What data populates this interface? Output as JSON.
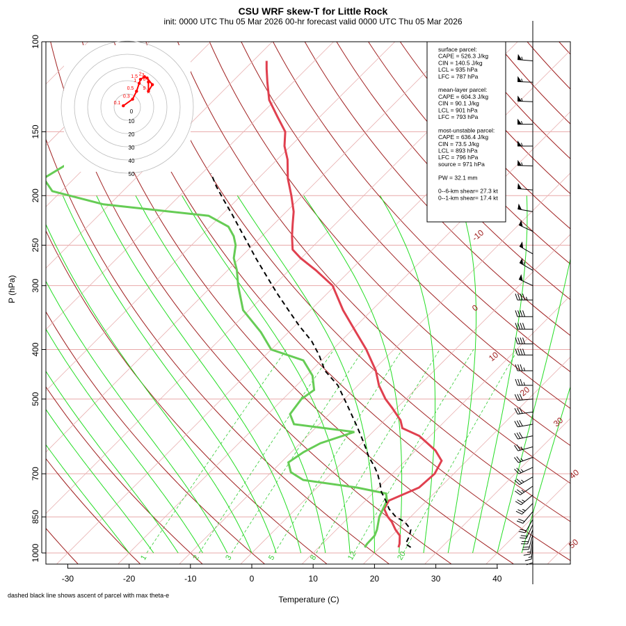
{
  "header": {
    "title": "CSU WRF skew-T for Little Rock",
    "subtitle": "init: 0000 UTC Thu 05 Mar 2026     00-hr forecast valid 0000 UTC Thu 05 Mar 2026"
  },
  "footnote": "dashed black line shows ascent of parcel with max theta-e",
  "chart_data": {
    "type": "line",
    "title": "CSU WRF skew-T for Little Rock",
    "xlabel": "Temperature (C)",
    "ylabel": "P (hPa)",
    "x_ticks": [
      "-30",
      "-20",
      "-10",
      "0",
      "10",
      "20",
      "30",
      "40"
    ],
    "y_ticks": [
      "100",
      "150",
      "200",
      "250",
      "300",
      "400",
      "500",
      "700",
      "850",
      "1000"
    ],
    "xlim": [
      -33,
      50
    ],
    "ylim": [
      1000,
      100
    ],
    "isotherm_labels": [
      "-10",
      "0",
      "10",
      "20",
      "30",
      "40",
      "50"
    ],
    "mixing_ratio_labels": [
      "1",
      "2",
      "3",
      "5",
      "8",
      "12",
      "20"
    ],
    "series": [
      {
        "name": "temperature",
        "color": "#e0404f",
        "points": [
          [
            23.0,
            975
          ],
          [
            22.6,
            960
          ],
          [
            21.3,
            925
          ],
          [
            19.6,
            900
          ],
          [
            17.8,
            870
          ],
          [
            16.3,
            850
          ],
          [
            14.4,
            820
          ],
          [
            13.8,
            790
          ],
          [
            16.6,
            745
          ],
          [
            16.9,
            700
          ],
          [
            15.9,
            660
          ],
          [
            13.2,
            630
          ],
          [
            8.2,
            590
          ],
          [
            4.2,
            570
          ],
          [
            2.6,
            550
          ],
          [
            -0.8,
            520
          ],
          [
            -3.3,
            500
          ],
          [
            -6.6,
            470
          ],
          [
            -9.5,
            440
          ],
          [
            -14.5,
            400
          ],
          [
            -19.0,
            370
          ],
          [
            -24.7,
            335
          ],
          [
            -30.4,
            300
          ],
          [
            -35.6,
            280
          ],
          [
            -40.1,
            265
          ],
          [
            -42.8,
            255
          ],
          [
            -45.1,
            240
          ],
          [
            -47.0,
            227
          ],
          [
            -48.8,
            215
          ],
          [
            -51.8,
            200
          ],
          [
            -55.2,
            185
          ],
          [
            -58.3,
            170
          ],
          [
            -61.0,
            160
          ],
          [
            -63.2,
            150
          ],
          [
            -67.0,
            140
          ],
          [
            -71.0,
            130
          ],
          [
            -74.2,
            120
          ],
          [
            -76.5,
            113
          ],
          [
            -77.8,
            109
          ]
        ]
      },
      {
        "name": "dewpoint",
        "color": "#66cc55",
        "points": [
          [
            17.5,
            975
          ],
          [
            17.3,
            960
          ],
          [
            17.2,
            925
          ],
          [
            16.6,
            900
          ],
          [
            15.6,
            870
          ],
          [
            14.9,
            850
          ],
          [
            14.2,
            820
          ],
          [
            13.5,
            790
          ],
          [
            12.2,
            765
          ],
          [
            6.5,
            745
          ],
          [
            -3.5,
            720
          ],
          [
            -6.8,
            695
          ],
          [
            -8.8,
            665
          ],
          [
            -8.0,
            635
          ],
          [
            -6.7,
            610
          ],
          [
            -3.0,
            580
          ],
          [
            -14.1,
            560
          ],
          [
            -16.4,
            535
          ],
          [
            -17.0,
            500
          ],
          [
            -16.4,
            480
          ],
          [
            -19.0,
            450
          ],
          [
            -23.0,
            420
          ],
          [
            -30.0,
            400
          ],
          [
            -34.5,
            370
          ],
          [
            -41.0,
            335
          ],
          [
            -45.8,
            300
          ],
          [
            -48.5,
            280
          ],
          [
            -51.0,
            265
          ],
          [
            -52.8,
            250
          ],
          [
            -54.6,
            240
          ],
          [
            -57.0,
            230
          ],
          [
            -62.0,
            219
          ],
          [
            -81.0,
            208
          ],
          [
            -91.5,
            196
          ],
          [
            -95.0,
            185
          ],
          [
            -93.0,
            170
          ],
          [
            -87.5,
            162
          ]
        ]
      },
      {
        "name": "parcel",
        "color": "#000000",
        "points": [
          [
            25.0,
            975
          ],
          [
            23.6,
            960
          ],
          [
            22.9,
            925
          ],
          [
            22.1,
            900
          ],
          [
            19.9,
            870
          ],
          [
            17.6,
            850
          ],
          [
            15.2,
            820
          ],
          [
            13.3,
            790
          ],
          [
            11.2,
            760
          ],
          [
            9.5,
            730
          ],
          [
            7.6,
            700
          ],
          [
            5.7,
            675
          ],
          [
            3.5,
            650
          ],
          [
            1.2,
            620
          ],
          [
            -1.3,
            590
          ],
          [
            -4.0,
            560
          ],
          [
            -6.9,
            530
          ],
          [
            -10.0,
            500
          ],
          [
            -13.3,
            470
          ],
          [
            -17.8,
            440
          ],
          [
            -21.3,
            410
          ],
          [
            -24.8,
            385
          ],
          [
            -29.2,
            360
          ],
          [
            -33.6,
            335
          ],
          [
            -38.3,
            310
          ],
          [
            -43.2,
            285
          ],
          [
            -47.4,
            265
          ],
          [
            -51.1,
            248
          ],
          [
            -54.6,
            233
          ],
          [
            -58.3,
            218
          ],
          [
            -62.1,
            204
          ],
          [
            -65.5,
            192
          ],
          [
            -68.5,
            181
          ]
        ]
      }
    ],
    "hodograph": {
      "ring_labels": [
        "0",
        "10",
        "20",
        "30",
        "40",
        "50"
      ],
      "point_labels": [
        "0.1",
        "0.3",
        "0.5",
        "1",
        "1.5",
        "2",
        "3",
        "5",
        "9",
        "6"
      ],
      "points": [
        [
          -3,
          1
        ],
        [
          4,
          6
        ],
        [
          7,
          12
        ],
        [
          9,
          18
        ],
        [
          10,
          21
        ],
        [
          13,
          23
        ],
        [
          15,
          22
        ],
        [
          19,
          17
        ],
        [
          16,
          12
        ],
        [
          16,
          19
        ]
      ]
    },
    "wind_barbs": [
      {
        "p": 109,
        "dir": 275,
        "spd": 55
      },
      {
        "p": 120,
        "dir": 272,
        "spd": 55
      },
      {
        "p": 131,
        "dir": 272,
        "spd": 55
      },
      {
        "p": 145,
        "dir": 270,
        "spd": 55
      },
      {
        "p": 160,
        "dir": 270,
        "spd": 55
      },
      {
        "p": 175,
        "dir": 272,
        "spd": 55
      },
      {
        "p": 195,
        "dir": 275,
        "spd": 50
      },
      {
        "p": 215,
        "dir": 280,
        "spd": 50
      },
      {
        "p": 235,
        "dir": 295,
        "spd": 50
      },
      {
        "p": 260,
        "dir": 300,
        "spd": 50
      },
      {
        "p": 280,
        "dir": 300,
        "spd": 55
      },
      {
        "p": 300,
        "dir": 295,
        "spd": 50
      },
      {
        "p": 320,
        "dir": 270,
        "spd": 45
      },
      {
        "p": 345,
        "dir": 270,
        "spd": 40
      },
      {
        "p": 365,
        "dir": 270,
        "spd": 40
      },
      {
        "p": 390,
        "dir": 270,
        "spd": 40
      },
      {
        "p": 410,
        "dir": 270,
        "spd": 40
      },
      {
        "p": 440,
        "dir": 270,
        "spd": 35
      },
      {
        "p": 470,
        "dir": 270,
        "spd": 35
      },
      {
        "p": 500,
        "dir": 265,
        "spd": 30
      },
      {
        "p": 530,
        "dir": 262,
        "spd": 30
      },
      {
        "p": 560,
        "dir": 260,
        "spd": 30
      },
      {
        "p": 590,
        "dir": 258,
        "spd": 30
      },
      {
        "p": 620,
        "dir": 255,
        "spd": 25
      },
      {
        "p": 650,
        "dir": 250,
        "spd": 25
      },
      {
        "p": 680,
        "dir": 245,
        "spd": 25
      },
      {
        "p": 710,
        "dir": 240,
        "spd": 25
      },
      {
        "p": 740,
        "dir": 235,
        "spd": 25
      },
      {
        "p": 770,
        "dir": 230,
        "spd": 25
      },
      {
        "p": 800,
        "dir": 225,
        "spd": 25
      },
      {
        "p": 830,
        "dir": 220,
        "spd": 20
      },
      {
        "p": 860,
        "dir": 210,
        "spd": 20
      },
      {
        "p": 880,
        "dir": 205,
        "spd": 20
      },
      {
        "p": 900,
        "dir": 200,
        "spd": 20
      },
      {
        "p": 920,
        "dir": 195,
        "spd": 20
      },
      {
        "p": 940,
        "dir": 190,
        "spd": 15
      },
      {
        "p": 960,
        "dir": 185,
        "spd": 15
      },
      {
        "p": 975,
        "dir": 180,
        "spd": 10
      }
    ],
    "info_box": [
      "surface parcel:",
      "CAPE = 526.3 J/kg",
      "CIN = 140.5 J/kg",
      "LCL = 935 hPa",
      "LFC = 787 hPa",
      "",
      "mean-layer parcel:",
      "CAPE = 604.3 J/kg",
      "CIN = 90.1 J/kg",
      "LCL = 901 hPa",
      "LFC = 793 hPa",
      "",
      "most-unstable parcel:",
      "CAPE = 636.4 J/kg",
      "CIN = 73.5 J/kg",
      "LCL = 893 hPa",
      "LFC = 796 hPa",
      "source = 971 hPa",
      "",
      "PW =  32.1 mm",
      "",
      "0--6-km shear= 27.3 kt",
      "0--1-km shear= 17.4 kt"
    ]
  }
}
